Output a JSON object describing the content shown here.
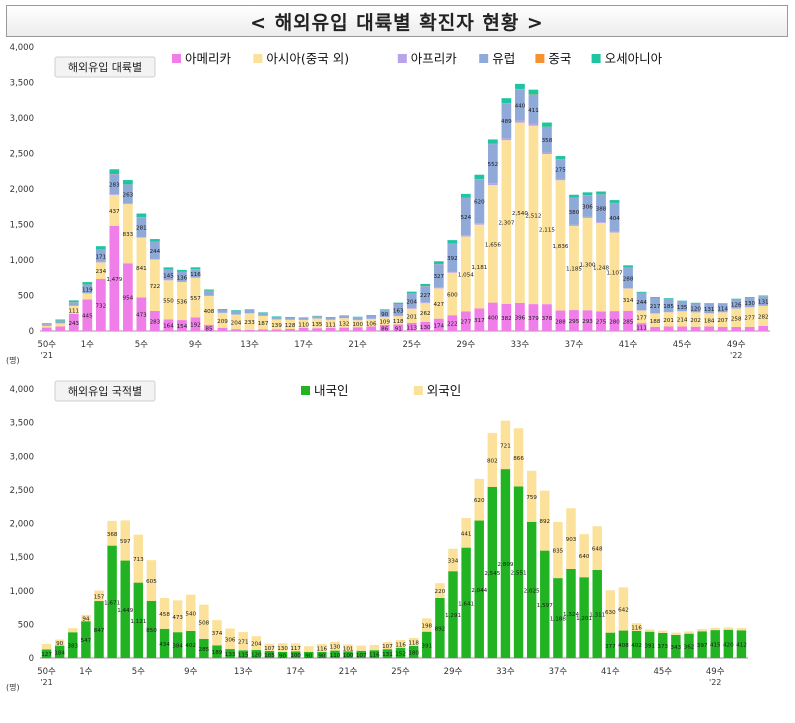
{
  "page_title": "< 해외유입 대륙별 확진자 현황 >",
  "colors": {
    "americas": "#f07ee8",
    "asia": "#fbe199",
    "africa": "#b8a3e8",
    "europe": "#8fa9d8",
    "china": "#f7922e",
    "oceania": "#1fc4a0",
    "domestic": "#21b321",
    "foreign": "#fbe199"
  },
  "chart_data": [
    {
      "type": "bar",
      "stacked": true,
      "title": "해외유입 대륙별",
      "unit": "(명)",
      "ylim": [
        0,
        4000
      ],
      "yticks": [
        "0",
        "500",
        "1,000",
        "1,500",
        "2,000",
        "2,500",
        "3,000",
        "3,500",
        "4,000"
      ],
      "xtick_labels": [
        {
          "index": 0,
          "label": "50수",
          "sub": "'21"
        },
        {
          "index": 3,
          "label": "1수"
        },
        {
          "index": 7,
          "label": "5수"
        },
        {
          "index": 11,
          "label": "9수"
        },
        {
          "index": 15,
          "label": "13수"
        },
        {
          "index": 19,
          "label": "17수"
        },
        {
          "index": 23,
          "label": "21수"
        },
        {
          "index": 27,
          "label": "25수"
        },
        {
          "index": 31,
          "label": "29수"
        },
        {
          "index": 35,
          "label": "33수"
        },
        {
          "index": 39,
          "label": "37수"
        },
        {
          "index": 43,
          "label": "41수"
        },
        {
          "index": 47,
          "label": "45수"
        },
        {
          "index": 51,
          "label": "49수",
          "sub": "'22"
        }
      ],
      "legend_position": "top",
      "series": [
        {
          "name": "아메리카",
          "values": [
            48,
            63,
            243,
            445,
            732,
            1479,
            954,
            473,
            283,
            164,
            154,
            192,
            85,
            45,
            26,
            15,
            25,
            22,
            29,
            45,
            40,
            45,
            48,
            53,
            63,
            86,
            91,
            113,
            130,
            174,
            222,
            277,
            317,
            400,
            382,
            396,
            379,
            378,
            288,
            295,
            293,
            275,
            280,
            285,
            111,
            57,
            63,
            63,
            60,
            64,
            56,
            56,
            57,
            72
          ]
        },
        {
          "name": "아시아(중국 외)",
          "values": [
            24,
            42,
            111,
            82,
            234,
            437,
            833,
            841,
            722,
            550,
            536,
            557,
            408,
            209,
            204,
            233,
            187,
            139,
            128,
            110,
            135,
            111,
            132,
            100,
            106,
            109,
            118,
            201,
            262,
            427,
            600,
            1054,
            1181,
            1656,
            2307,
            2540,
            2512,
            2115,
            1836,
            1185,
            1300,
            1248,
            1107,
            314,
            177,
            188,
            201,
            214,
            202,
            184,
            207,
            258,
            277,
            282
          ]
        },
        {
          "name": "아프리카",
          "values": [
            5,
            5,
            5,
            6,
            8,
            10,
            12,
            8,
            6,
            5,
            5,
            5,
            4,
            3,
            3,
            3,
            3,
            3,
            3,
            3,
            3,
            3,
            3,
            4,
            5,
            6,
            8,
            10,
            12,
            14,
            16,
            18,
            20,
            25,
            28,
            30,
            26,
            22,
            18,
            15,
            14,
            12,
            11,
            6,
            4,
            4,
            4,
            4,
            4,
            4,
            4,
            4,
            4,
            4
          ]
        },
        {
          "name": "유럽",
          "values": [
            20,
            35,
            45,
            119,
            171,
            283,
            263,
            281,
            244,
            145,
            136,
            116,
            68,
            40,
            50,
            45,
            39,
            33,
            30,
            27,
            28,
            30,
            30,
            35,
            40,
            90,
            163,
            204,
            227,
            327,
            392,
            524,
            620,
            552,
            489,
            440,
            411,
            358,
            275,
            380,
            306,
            388,
            404,
            288,
            244,
            217,
            185,
            135,
            120,
            131,
            114,
            126,
            130,
            131
          ]
        },
        {
          "name": "중국",
          "values": [
            2,
            2,
            2,
            2,
            2,
            2,
            2,
            2,
            2,
            2,
            2,
            2,
            2,
            1,
            1,
            1,
            1,
            1,
            1,
            1,
            1,
            1,
            1,
            1,
            1,
            1,
            1,
            2,
            2,
            2,
            2,
            3,
            3,
            3,
            3,
            3,
            3,
            3,
            2,
            2,
            2,
            2,
            2,
            2,
            1,
            1,
            1,
            1,
            1,
            1,
            1,
            1,
            1,
            1
          ]
        },
        {
          "name": "오세아니아",
          "values": [
            10,
            15,
            25,
            35,
            48,
            67,
            62,
            50,
            38,
            30,
            28,
            25,
            18,
            12,
            10,
            9,
            8,
            8,
            7,
            7,
            7,
            7,
            7,
            8,
            10,
            13,
            18,
            24,
            30,
            38,
            48,
            55,
            60,
            62,
            70,
            72,
            68,
            60,
            45,
            42,
            38,
            40,
            40,
            30,
            15,
            12,
            10,
            10,
            10,
            9,
            9,
            10,
            10,
            10
          ]
        }
      ]
    },
    {
      "type": "bar",
      "stacked": true,
      "title": "해외유입 국적별",
      "unit": "(명)",
      "ylim": [
        0,
        4000
      ],
      "yticks": [
        "0",
        "500",
        "1,000",
        "1,500",
        "2,000",
        "2,500",
        "3,000",
        "3,500",
        "4,000"
      ],
      "xtick_labels": [
        {
          "index": 0,
          "label": "50수",
          "sub": "'21"
        },
        {
          "index": 3,
          "label": "1수"
        },
        {
          "index": 7,
          "label": "5수"
        },
        {
          "index": 11,
          "label": "9수"
        },
        {
          "index": 15,
          "label": "13수"
        },
        {
          "index": 19,
          "label": "17수"
        },
        {
          "index": 23,
          "label": "21수"
        },
        {
          "index": 27,
          "label": "25수"
        },
        {
          "index": 31,
          "label": "29수"
        },
        {
          "index": 35,
          "label": "33수"
        },
        {
          "index": 39,
          "label": "37수"
        },
        {
          "index": 43,
          "label": "41수"
        },
        {
          "index": 47,
          "label": "45수"
        },
        {
          "index": 51,
          "label": "49수",
          "sub": "'22"
        }
      ],
      "legend_position": "top",
      "series": [
        {
          "name": "내국인",
          "values": [
            127,
            184,
            383,
            547,
            847,
            1671,
            1449,
            1121,
            850,
            434,
            384,
            402,
            285,
            189,
            133,
            115,
            120,
            105,
            90,
            100,
            90,
            90,
            110,
            100,
            107,
            116,
            131,
            152,
            180,
            391,
            892,
            1291,
            1641,
            2044,
            2545,
            2809,
            2551,
            2025,
            1597,
            1188,
            1324,
            1201,
            1311,
            377,
            408,
            402,
            391,
            373,
            343,
            362,
            397,
            415,
            420,
            412
          ]
        },
        {
          "name": "외국인",
          "values": [
            82,
            90,
            60,
            94,
            157,
            368,
            597,
            713,
            605,
            458,
            473,
            540,
            508,
            374,
            306,
            271,
            204,
            107,
            130,
            117,
            86,
            116,
            130,
            101,
            78,
            78,
            107,
            116,
            118,
            198,
            220,
            334,
            441,
            620,
            802,
            721,
            866,
            759,
            892,
            835,
            903,
            640,
            648,
            630,
            642,
            116,
            34,
            34,
            34,
            34,
            34,
            34,
            34,
            34
          ]
        }
      ]
    }
  ]
}
